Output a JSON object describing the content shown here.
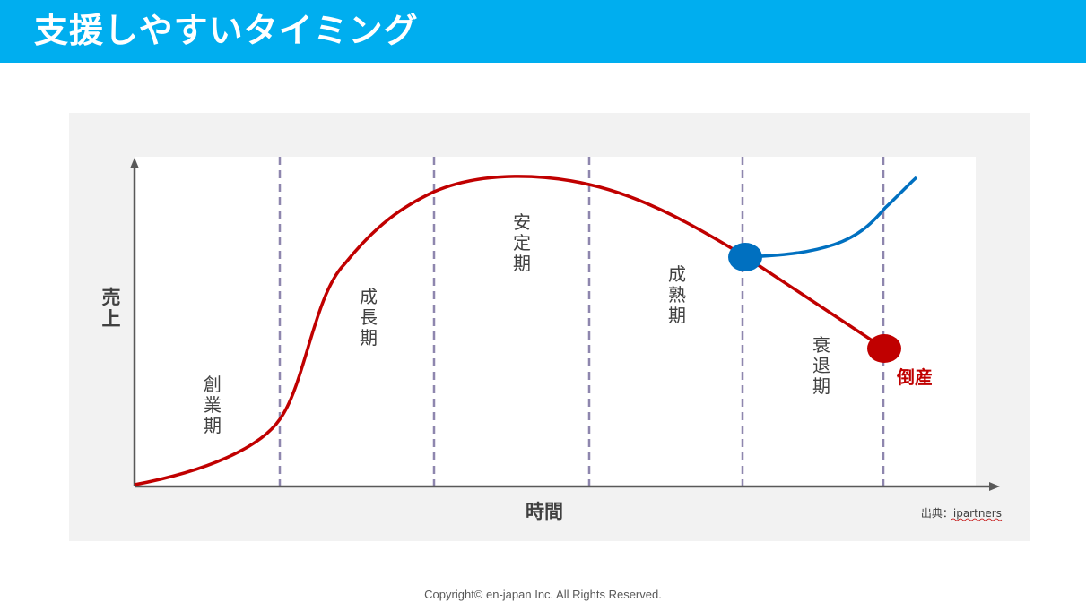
{
  "header": {
    "title": "支援しやすいタイミング"
  },
  "chart": {
    "y_label": "売上",
    "x_label": "時間",
    "source": "出典：ipartners",
    "phases": [
      {
        "label": "創業期"
      },
      {
        "label": "成長期"
      },
      {
        "label": "安定期"
      },
      {
        "label": "成熟期"
      },
      {
        "label": "衰退期"
      }
    ],
    "bankruptcy_label": "倒産",
    "colors": {
      "header": "#00AEEF",
      "decline_curve": "#C00000",
      "recovery_curve": "#0070C0",
      "support_point": "#0070C0",
      "bankruptcy_point": "#C00000",
      "divider": "#8E86AE"
    }
  },
  "footer": {
    "copyright": "Copyright© en-japan Inc. All Rights Reserved."
  }
}
